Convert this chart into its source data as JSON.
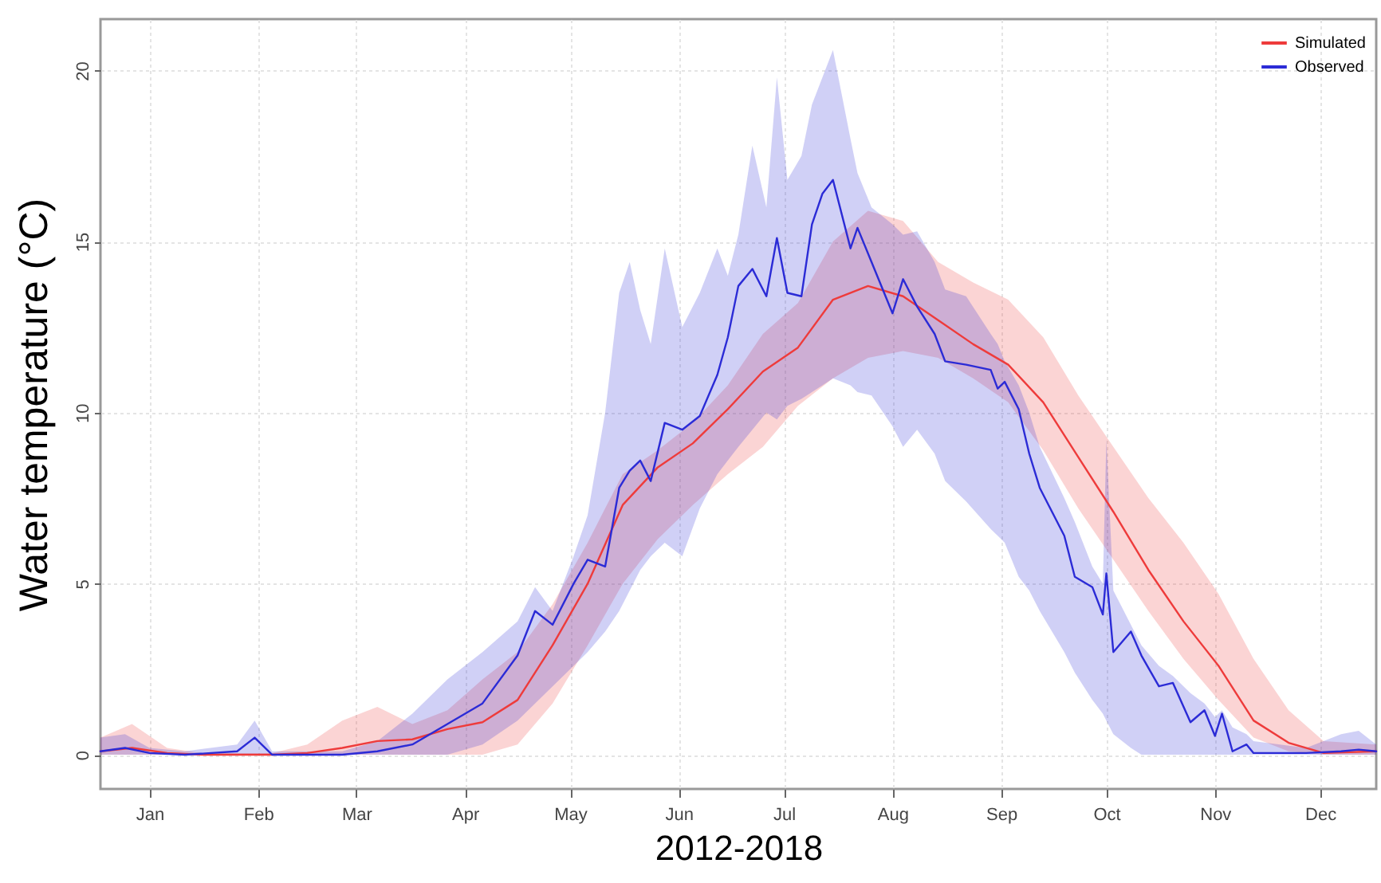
{
  "chart_data": {
    "type": "line",
    "xlabel": "2012-2018",
    "ylabel": "Water temperature (°C)",
    "xlim": [
      "--01-01",
      "--12-31"
    ],
    "xticks": [
      {
        "value": "--01-15",
        "label": "Jan"
      },
      {
        "value": "--02-15",
        "label": "Feb"
      },
      {
        "value": "--03-15",
        "label": "Mar"
      },
      {
        "value": "--04-15",
        "label": "Apr"
      },
      {
        "value": "--05-15",
        "label": "May"
      },
      {
        "value": "--06-15",
        "label": "Jun"
      },
      {
        "value": "--07-15",
        "label": "Jul"
      },
      {
        "value": "--08-15",
        "label": "Aug"
      },
      {
        "value": "--09-15",
        "label": "Sep"
      },
      {
        "value": "--10-15",
        "label": "Oct"
      },
      {
        "value": "--11-15",
        "label": "Nov"
      },
      {
        "value": "--12-15",
        "label": "Dec"
      }
    ],
    "ylim": [
      -1,
      21.5
    ],
    "yticks": [
      0,
      5,
      10,
      15,
      20
    ],
    "grid": true,
    "legend": "top right",
    "marker": "none",
    "line_style": "solid",
    "series": [
      {
        "name": "Simulated",
        "color": "#ee3b3b",
        "x": [
          "--01-01",
          "--01-10",
          "--01-20",
          "--01-30",
          "--02-09",
          "--02-19",
          "--03-01",
          "--03-11",
          "--03-21",
          "--03-31",
          "--04-10",
          "--04-20",
          "--04-30",
          "--05-10",
          "--05-20",
          "--05-30",
          "--06-09",
          "--06-19",
          "--06-29",
          "--07-09",
          "--07-19",
          "--07-29",
          "--08-08",
          "--08-18",
          "--08-28",
          "--09-07",
          "--09-17",
          "--09-27",
          "--10-07",
          "--10-17",
          "--10-27",
          "--11-06",
          "--11-16",
          "--11-26",
          "--12-06",
          "--12-16",
          "--12-31"
        ],
        "values": [
          0.1,
          0.2,
          0.05,
          0,
          0,
          0,
          0.05,
          0.2,
          0.4,
          0.45,
          0.75,
          0.95,
          1.6,
          3.2,
          5.0,
          7.3,
          8.4,
          9.1,
          10.1,
          11.2,
          11.9,
          13.3,
          13.7,
          13.4,
          12.7,
          12.0,
          11.4,
          10.3,
          8.7,
          7.1,
          5.4,
          3.9,
          2.6,
          1.0,
          0.35,
          0.05,
          0.1
        ],
        "lower": [
          0,
          0,
          0,
          0,
          0,
          0,
          0,
          0,
          0,
          0,
          0,
          0,
          0.3,
          1.5,
          3.2,
          5.0,
          6.3,
          7.3,
          8.2,
          9.0,
          10.2,
          11.0,
          11.6,
          11.8,
          11.6,
          11.0,
          10.3,
          8.9,
          7.2,
          5.7,
          4.2,
          2.8,
          1.6,
          0.5,
          0.1,
          0,
          0
        ],
        "upper": [
          0.5,
          0.9,
          0.2,
          0.05,
          0.05,
          0.05,
          0.3,
          1.0,
          1.4,
          0.9,
          1.3,
          2.2,
          3.0,
          4.4,
          6.2,
          8.2,
          8.9,
          9.7,
          10.8,
          12.3,
          13.2,
          15.0,
          15.9,
          15.6,
          14.4,
          13.8,
          13.3,
          12.2,
          10.5,
          9.0,
          7.5,
          6.2,
          4.7,
          2.8,
          1.3,
          0.4,
          0.3
        ]
      },
      {
        "name": "Observed",
        "color": "#2b2bd6",
        "x": [
          "--01-01",
          "--01-08",
          "--01-15",
          "--01-25",
          "--02-09",
          "--02-14",
          "--02-19",
          "--03-11",
          "--03-21",
          "--03-31",
          "--04-10",
          "--04-20",
          "--04-30",
          "--05-05",
          "--05-10",
          "--05-16",
          "--05-20",
          "--05-25",
          "--05-29",
          "--06-01",
          "--06-04",
          "--06-07",
          "--06-11",
          "--06-16",
          "--06-21",
          "--06-26",
          "--06-29",
          "--07-02",
          "--07-06",
          "--07-10",
          "--07-13",
          "--07-16",
          "--07-20",
          "--07-23",
          "--07-26",
          "--07-29",
          "--08-03",
          "--08-05",
          "--08-09",
          "--08-15",
          "--08-18",
          "--08-22",
          "--08-27",
          "--08-30",
          "--09-05",
          "--09-12",
          "--09-14",
          "--09-16",
          "--09-20",
          "--09-23",
          "--09-26",
          "--10-03",
          "--10-06",
          "--10-11",
          "--10-14",
          "--10-15",
          "--10-17",
          "--10-22",
          "--10-25",
          "--10-30",
          "--11-03",
          "--11-08",
          "--11-12",
          "--11-15",
          "--11-17",
          "--11-20",
          "--11-24",
          "--11-26",
          "--12-11",
          "--12-21",
          "--12-26",
          "--12-31"
        ],
        "values": [
          0.1,
          0.2,
          0.05,
          0,
          0.1,
          0.5,
          0,
          0,
          0.1,
          0.3,
          0.9,
          1.5,
          2.9,
          4.2,
          3.8,
          5.0,
          5.7,
          5.5,
          7.8,
          8.3,
          8.6,
          8.0,
          9.7,
          9.5,
          9.9,
          11.1,
          12.2,
          13.7,
          14.2,
          13.4,
          15.1,
          13.5,
          13.4,
          15.5,
          16.4,
          16.8,
          14.8,
          15.4,
          14.4,
          12.9,
          13.9,
          13.1,
          12.3,
          11.5,
          11.4,
          11.25,
          10.7,
          10.9,
          10.1,
          8.8,
          7.8,
          6.4,
          5.2,
          4.9,
          4.1,
          5.3,
          3.0,
          3.6,
          2.9,
          2.0,
          2.1,
          0.95,
          1.3,
          0.55,
          1.2,
          0.1,
          0.3,
          0.05,
          0.05,
          0.1,
          0.15,
          0.1
        ],
        "lower": [
          0,
          0,
          0,
          0,
          0,
          0,
          0,
          0,
          0,
          0,
          0,
          0.3,
          1.0,
          1.5,
          2.0,
          2.6,
          3.0,
          3.6,
          4.2,
          4.8,
          5.4,
          5.8,
          6.2,
          5.8,
          7.2,
          8.2,
          8.6,
          9.0,
          9.5,
          10.0,
          9.8,
          10.2,
          10.4,
          10.6,
          10.8,
          11.0,
          10.8,
          10.6,
          10.5,
          9.6,
          9.0,
          9.5,
          8.8,
          8.0,
          7.4,
          6.6,
          6.4,
          6.2,
          5.2,
          4.8,
          4.2,
          3.0,
          2.4,
          1.6,
          1.2,
          1.0,
          0.6,
          0.2,
          0,
          0,
          0,
          0,
          0,
          0,
          0,
          0,
          0,
          0,
          0,
          0,
          0,
          0
        ],
        "upper": [
          0.5,
          0.6,
          0.2,
          0.1,
          0.3,
          1.0,
          0.1,
          0.1,
          0.4,
          1.2,
          2.2,
          3.0,
          3.9,
          4.9,
          4.2,
          5.8,
          7.0,
          10.0,
          13.5,
          14.4,
          13.0,
          12.0,
          14.8,
          12.5,
          13.5,
          14.8,
          14.0,
          15.2,
          17.8,
          16.0,
          19.8,
          16.8,
          17.5,
          19.0,
          19.8,
          20.6,
          18.0,
          17.0,
          16.0,
          15.5,
          15.2,
          15.3,
          14.4,
          13.6,
          13.4,
          12.3,
          12.0,
          11.5,
          10.8,
          10.0,
          9.0,
          7.5,
          6.8,
          5.5,
          5.0,
          9.2,
          4.8,
          3.8,
          3.2,
          2.6,
          2.3,
          1.8,
          1.5,
          1.1,
          1.3,
          0.8,
          0.6,
          0.4,
          0.2,
          0.6,
          0.7,
          0.3
        ]
      }
    ]
  }
}
